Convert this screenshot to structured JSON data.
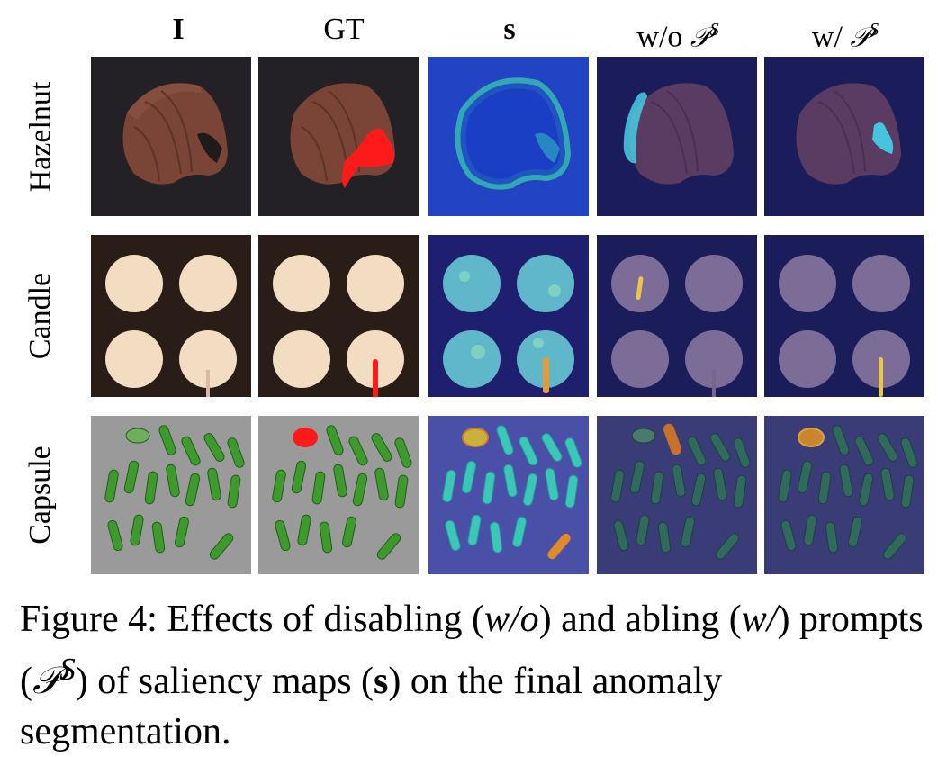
{
  "columns": [
    {
      "id": "I",
      "label": "I",
      "bold": true
    },
    {
      "id": "GT",
      "label": "GT",
      "bold": false
    },
    {
      "id": "s",
      "label": "s",
      "bold": true
    },
    {
      "id": "wo",
      "label_prefix": "w/o ",
      "symbol": "𝒫",
      "sup": "S"
    },
    {
      "id": "w",
      "label_prefix": "w/ ",
      "symbol": "𝒫",
      "sup": "S"
    }
  ],
  "rows": [
    {
      "id": "hazelnut",
      "label": "Hazelnut"
    },
    {
      "id": "candle",
      "label": "Candle"
    },
    {
      "id": "capsule",
      "label": "Capsule"
    }
  ],
  "caption": {
    "lead": "Figure 4: Effects of disabling (",
    "wo": "w/o",
    "mid1": ") and abling (",
    "w": "w/",
    "mid2": ") prompts (",
    "symbol": "𝒫",
    "sup": "S",
    "mid3": ") of saliency maps (",
    "s": "s",
    "tail": ") on the final anomaly segmentation."
  },
  "colors": {
    "overlay_blue": "#2a2a7a",
    "gt_red": "#ff1a1a",
    "anomaly_cyan": "#48c3dd",
    "anomaly_yellow": "#e9c54a"
  }
}
